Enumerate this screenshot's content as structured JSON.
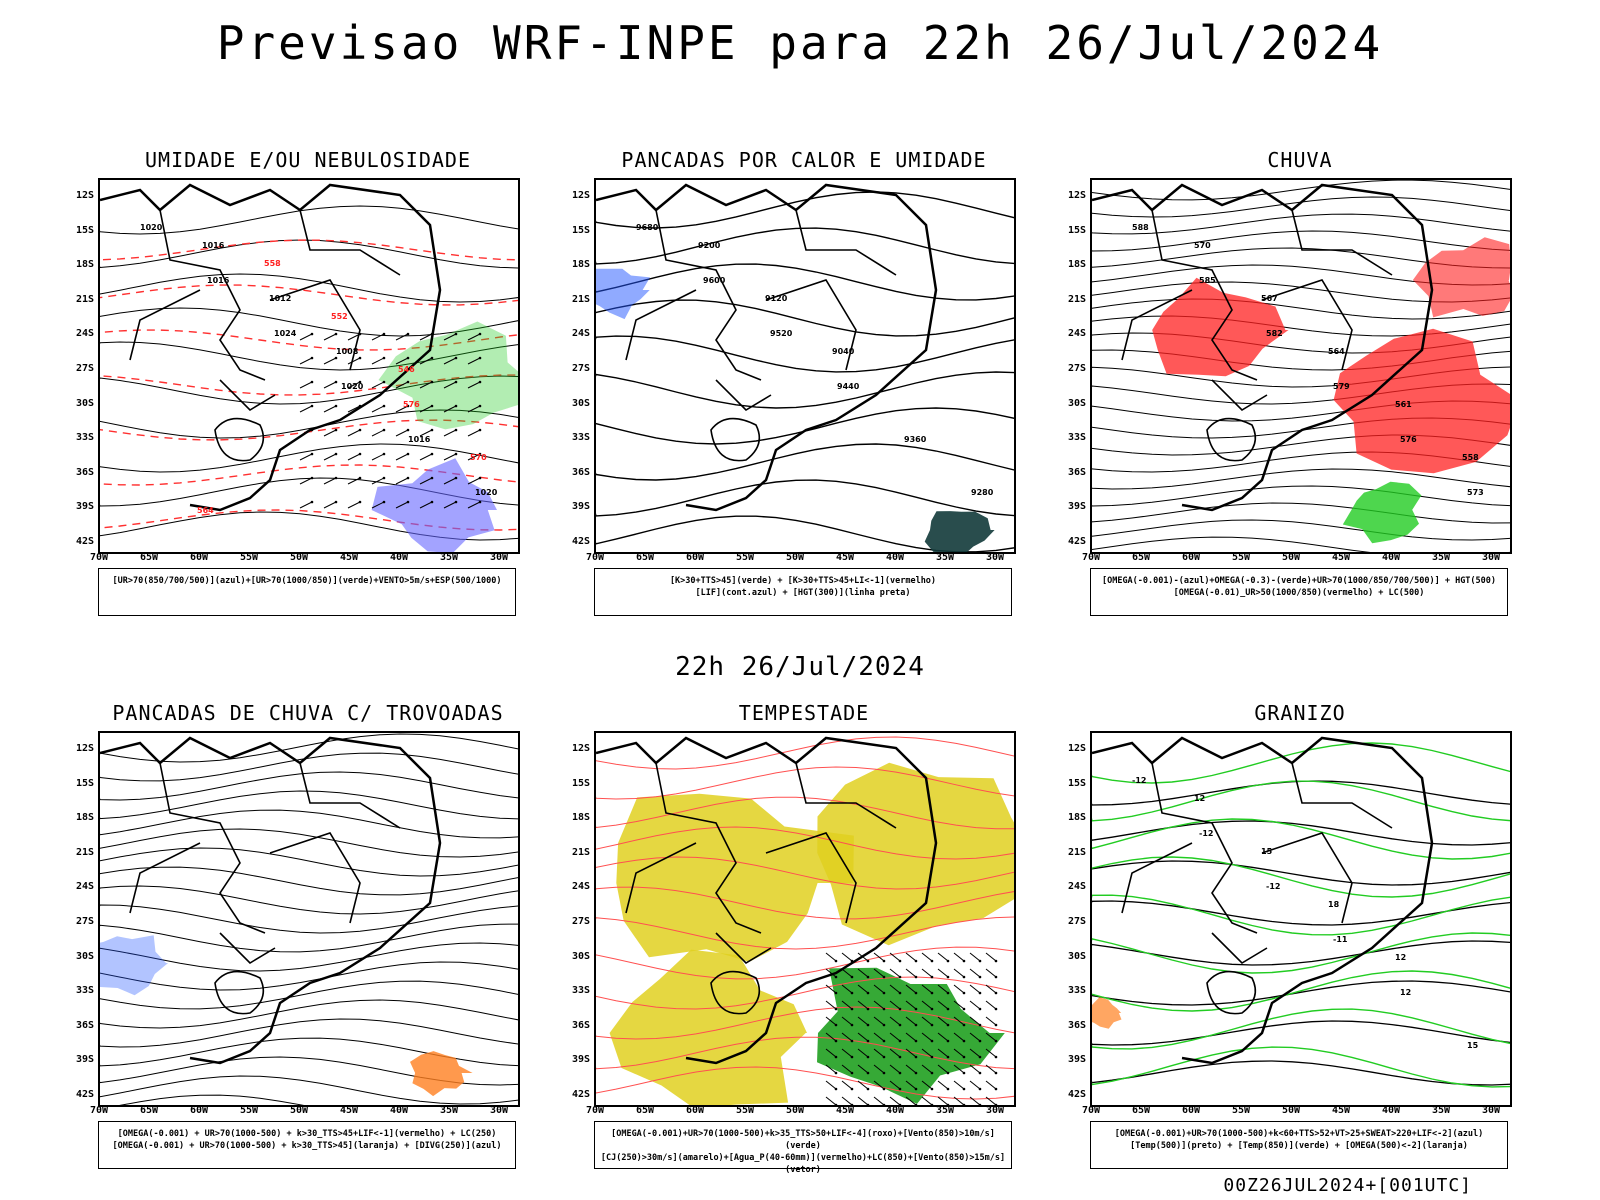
{
  "title": "Previsao WRF-INPE  para 22h 26/Jul/2024",
  "subtitle": "22h 26/Jul/2024",
  "footer": "00Z26JUL2024+[001UTC]",
  "axes": {
    "lat_labels": [
      "12S",
      "15S",
      "18S",
      "21S",
      "24S",
      "27S",
      "30S",
      "33S",
      "36S",
      "39S",
      "42S"
    ],
    "lon_labels": [
      "70W",
      "65W",
      "60W",
      "55W",
      "50W",
      "45W",
      "40W",
      "35W",
      "30W"
    ]
  },
  "panels": [
    {
      "title": "UMIDADE E/OU NEBULOSIDADE",
      "legend": [
        "[UR>70(850/700/500)](azul)+[UR>70(1000/850)](verde)+VENTO>5m/s+ESP(500/1000)"
      ],
      "contour_labels": [
        "1020",
        "1016",
        "1024",
        "1020",
        "1016",
        "1020",
        "1016",
        "1012",
        "1008",
        "576",
        "570",
        "564",
        "558",
        "552",
        "546"
      ]
    },
    {
      "title": "PANCADAS POR CALOR E UMIDADE",
      "legend": [
        "[K>30+TTS>45](verde) + [K>30+TTS>45+LI<-1](vermelho)",
        "[LIF](cont.azul) + [HGT(300)](linha preta)"
      ],
      "contour_labels": [
        "9680",
        "9600",
        "9520",
        "9440",
        "9360",
        "9280",
        "9200",
        "9120",
        "9040"
      ]
    },
    {
      "title": "CHUVA",
      "legend": [
        "[OMEGA(-0.001)-(azul)+OMEGA(-0.3)-(verde)+UR>70(1000/850/700/500)] + HGT(500)",
        "[OMEGA(-0.01)_UR>50(1000/850)(vermelho) + LC(500)"
      ],
      "contour_labels": [
        "588",
        "585",
        "582",
        "579",
        "576",
        "573",
        "570",
        "567",
        "564",
        "561",
        "558"
      ]
    },
    {
      "title": "PANCADAS DE CHUVA C/ TROVOADAS",
      "legend": [
        "[OMEGA(-0.001) + UR>70(1000-500) + k>30_TTS>45+LIF<-1](vermelho) + LC(250)",
        "[OMEGA(-0.001) + UR>70(1000-500) + k>30_TTS>45](laranja) + [DIVG(250)](azul)"
      ],
      "contour_labels": []
    },
    {
      "title": "TEMPESTADE",
      "legend": [
        "[OMEGA(-0.001)+UR>70(1000-500)+k>35_TTS>50+LIF<-4](roxo)+[Vento(850)>10m/s](verde)",
        "[CJ(250)>30m/s](amarelo)+[Agua_P(40-60mm)](vermelho)+LC(850)+[Vento(850)>15m/s](vetor)"
      ],
      "contour_labels": []
    },
    {
      "title": "GRANIZO",
      "legend": [
        "[OMEGA(-0.001)+UR>70(1000-500)+k<60+TTS>52+VT>25+SWEAT>220+LIF<-2](azul)",
        "[Temp(500)](preto) + [Temp(850)](verde) + [OMEGA(500)<-2](laranja)"
      ],
      "contour_labels": [
        "-12",
        "-12",
        "-12",
        "-11",
        "12",
        "15",
        "12",
        "15",
        "18",
        "12"
      ]
    }
  ]
}
